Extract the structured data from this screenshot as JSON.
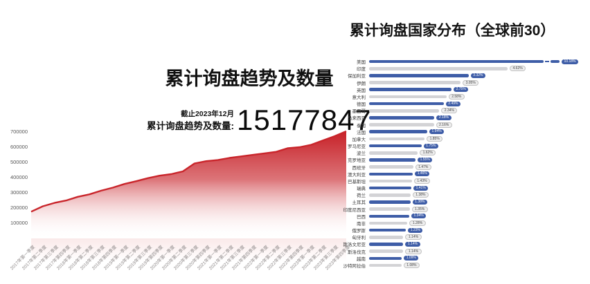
{
  "page": {
    "background": "#ffffff"
  },
  "colors": {
    "bar_blue": "#3e5da7",
    "bar_gray": "#d3d3d6",
    "area_red_top": "#c5181f",
    "area_line_red": "#c9252b"
  },
  "chart_data": [
    {
      "type": "area",
      "title": "累计询盘趋势及数量",
      "note": "截止2023年12月",
      "total_label": "累计询盘趋势及数量:",
      "total_value": "15177847",
      "xlabel": "",
      "ylabel": "",
      "ylim": [
        0,
        700000
      ],
      "yticks": [
        100000,
        200000,
        300000,
        400000,
        500000,
        600000,
        700000
      ],
      "grid": false,
      "legend": "none",
      "area_color_top": "#c5181f",
      "line_color": "#c9252b",
      "x": [
        "2017年第一季度",
        "2017年第二季度",
        "2017年第三季度",
        "2017年第四季度",
        "2018年第一季度",
        "2018年第二季度",
        "2018年第三季度",
        "2018年第四季度",
        "2019年第一季度",
        "2019年第二季度",
        "2019年第三季度",
        "2019年第四季度",
        "2020年第一季度",
        "2020年第二季度",
        "2020年第三季度",
        "2020年第四季度",
        "2021年第一季度",
        "2021年第二季度",
        "2021年第三季度",
        "2021年第四季度",
        "2022年第一季度",
        "2022年第二季度",
        "2022年第三季度",
        "2022年第四季度",
        "2023年第一季度",
        "2023年第二季度",
        "2023年第三季度",
        "2023年第四季度"
      ],
      "values": [
        175000,
        210000,
        232000,
        248000,
        272000,
        288000,
        312000,
        332000,
        356000,
        374000,
        394000,
        410000,
        420000,
        438000,
        490000,
        505000,
        512000,
        526000,
        536000,
        546000,
        556000,
        566000,
        590000,
        596000,
        612000,
        640000,
        668000,
        700000
      ]
    },
    {
      "type": "bar",
      "orientation": "horizontal",
      "title": "累计询盘国家分布（全球前30）",
      "unit": "%",
      "xlim": [
        0,
        5
      ],
      "legend": "none",
      "grid": false,
      "bar_colors_alternate": [
        "#3e5da7",
        "#d3d3d6"
      ],
      "truncated_bars": [
        0
      ],
      "categories": [
        "美国",
        "印度",
        "保加利亚",
        "伊朗",
        "英国",
        "意大利",
        "德国",
        "墨西哥",
        "马来西亚",
        "泰国",
        "法国",
        "加拿大",
        "罗马尼亚",
        "波兰",
        "克罗地亚",
        "西班牙",
        "澳大利亚",
        "巴基斯坦",
        "瑞典",
        "荷兰",
        "土耳其",
        "印度尼西亚",
        "巴西",
        "南非",
        "俄罗斯",
        "匈牙利",
        "斯洛文尼亚",
        "斯洛伐克",
        "越南",
        "沙特阿拉伯"
      ],
      "values": [
        10.18,
        4.62,
        3.32,
        3.05,
        2.75,
        2.58,
        2.49,
        2.34,
        2.18,
        2.16,
        1.94,
        1.85,
        1.75,
        1.62,
        1.55,
        1.47,
        1.46,
        1.43,
        1.41,
        1.38,
        1.38,
        1.35,
        1.34,
        1.28,
        1.23,
        1.14,
        1.14,
        1.14,
        1.09,
        1.08
      ],
      "value_labels": [
        "10.18%",
        "4.62%",
        "3.32%",
        "3.05%",
        "2.75%",
        "2.58%",
        "2.49%",
        "2.34%",
        "2.18%",
        "2.16%",
        "1.94%",
        "1.85%",
        "1.75%",
        "1.62%",
        "1.55%",
        "1.47%",
        "1.46%",
        "1.43%",
        "1.41%",
        "1.38%",
        "1.38%",
        "1.35%",
        "1.34%",
        "1.28%",
        "1.23%",
        "1.14%",
        "1.14%",
        "1.14%",
        "1.09%",
        "1.08%"
      ]
    }
  ]
}
